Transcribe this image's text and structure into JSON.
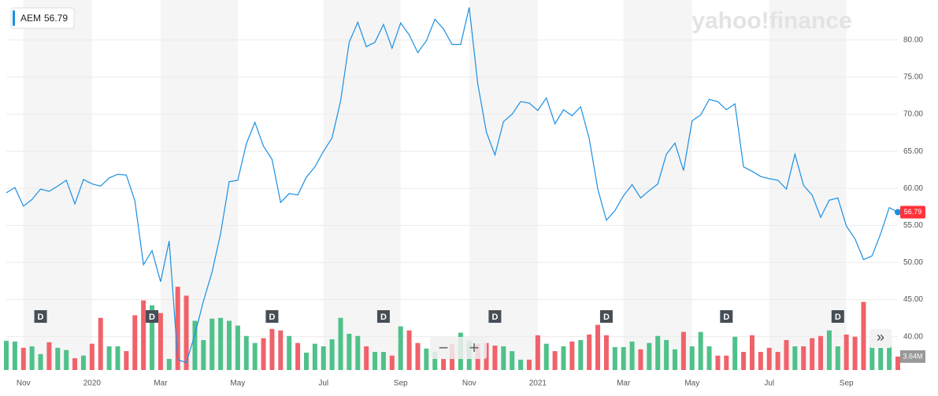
{
  "chart_data": {
    "type": "stock",
    "watermark": "yahoo!finance",
    "controls": {
      "zoom_out": "−",
      "zoom_in": "+",
      "expand": "»"
    },
    "categories": [
      null,
      null,
      "Nov",
      null,
      null,
      null,
      null,
      null,
      null,
      null,
      "2020",
      null,
      null,
      null,
      null,
      null,
      null,
      null,
      "Mar",
      null,
      null,
      null,
      null,
      null,
      null,
      null,
      null,
      "May",
      null,
      null,
      null,
      null,
      null,
      null,
      null,
      null,
      null,
      "Jul",
      null,
      null,
      null,
      null,
      null,
      null,
      null,
      null,
      "Sep",
      null,
      null,
      null,
      null,
      null,
      null,
      null,
      "Nov",
      null,
      null,
      null,
      null,
      null,
      null,
      null,
      "2021",
      null,
      null,
      null,
      null,
      null,
      null,
      null,
      null,
      null,
      "Mar",
      null,
      null,
      null,
      null,
      null,
      null,
      null,
      "May",
      null,
      null,
      null,
      null,
      null,
      null,
      null,
      null,
      "Jul",
      null,
      null,
      null,
      null,
      null,
      null,
      null,
      null,
      "Sep",
      null,
      null,
      null,
      null,
      null,
      null
    ],
    "series": [
      {
        "name": "AEM",
        "color": "#1a8fe3",
        "values": [
          59.4,
          60.1,
          57.6,
          58.5,
          59.9,
          59.6,
          60.3,
          61.1,
          57.9,
          61.2,
          60.6,
          60.3,
          61.4,
          61.9,
          61.8,
          58.3,
          49.7,
          51.6,
          47.4,
          52.9,
          36.9,
          36.5,
          40.3,
          44.8,
          48.7,
          53.9,
          60.9,
          61.1,
          66.0,
          68.9,
          65.7,
          63.9,
          58.1,
          59.3,
          59.1,
          61.5,
          62.9,
          65.0,
          66.8,
          71.8,
          79.7,
          82.4,
          79.1,
          79.7,
          82.1,
          78.9,
          82.3,
          80.7,
          78.3,
          79.9,
          82.8,
          81.5,
          79.4,
          79.4,
          84.4,
          74.1,
          67.6,
          64.5,
          69.0,
          70.0,
          71.7,
          71.5,
          70.5,
          72.2,
          68.7,
          70.6,
          69.8,
          71.0,
          66.7,
          59.9,
          55.7,
          57.0,
          59.0,
          60.5,
          58.7,
          59.7,
          60.6,
          64.6,
          66.1,
          62.4,
          69.1,
          69.9,
          72.0,
          71.7,
          70.6,
          71.4,
          62.9,
          62.3,
          61.6,
          61.3,
          61.1,
          59.9,
          64.6,
          60.4,
          59.1,
          56.1,
          58.4,
          58.7,
          54.9,
          53.2,
          50.4,
          50.9,
          53.9,
          57.4,
          56.79
        ]
      },
      {
        "name": "Volume",
        "axis": "y2",
        "up_color": "#4fc18a",
        "down_color": "#f0626a",
        "values": [
          7.9,
          7.7,
          6.0,
          6.4,
          4.3,
          7.5,
          6.0,
          5.4,
          3.2,
          3.9,
          7.1,
          14.1,
          6.4,
          6.4,
          5.1,
          14.8,
          18.8,
          17.5,
          15.4,
          3.0,
          22.5,
          20.1,
          13.3,
          8.1,
          13.9,
          14.1,
          13.3,
          12.0,
          9.2,
          7.3,
          8.6,
          11.1,
          10.7,
          9.2,
          7.3,
          4.7,
          7.1,
          6.4,
          8.3,
          14.1,
          9.8,
          9.2,
          6.4,
          4.9,
          4.9,
          3.9,
          11.8,
          10.7,
          7.3,
          5.8,
          4.9,
          3.0,
          7.1,
          10.1,
          7.9,
          7.1,
          7.3,
          6.6,
          6.4,
          5.1,
          2.8,
          2.8,
          9.4,
          7.1,
          5.1,
          6.4,
          7.7,
          8.1,
          9.6,
          12.2,
          9.4,
          6.2,
          6.2,
          7.7,
          5.6,
          7.3,
          9.2,
          8.1,
          5.6,
          10.3,
          6.4,
          10.3,
          6.4,
          3.9,
          3.9,
          9.0,
          4.9,
          9.4,
          4.9,
          6.0,
          4.9,
          8.1,
          6.4,
          6.4,
          8.6,
          9.2,
          10.7,
          6.4,
          9.6,
          9.0,
          18.4,
          8.6,
          6.4,
          8.1,
          3.64
        ],
        "value_labels": [
          null,
          null,
          null,
          null,
          null,
          null,
          null,
          null,
          null,
          null,
          null,
          null,
          null,
          null,
          null,
          null,
          null,
          null,
          null,
          null,
          null,
          null,
          null,
          null,
          null,
          null,
          null,
          null,
          null,
          null,
          null,
          null,
          null,
          null,
          null,
          null,
          null,
          null,
          null,
          null,
          null,
          null,
          null,
          null,
          null,
          null,
          null,
          null,
          null,
          null,
          null,
          null,
          null,
          null,
          null,
          null,
          null,
          null,
          null,
          null,
          null,
          null,
          null,
          null,
          null,
          null,
          null,
          null,
          null,
          null,
          null,
          null,
          null,
          null,
          null,
          null,
          null,
          null,
          null,
          null,
          null,
          null,
          null,
          null,
          null,
          null,
          null,
          null,
          null,
          null,
          null,
          null,
          null,
          null,
          null,
          null,
          null,
          null,
          null,
          null,
          null,
          null,
          null,
          null,
          "3.64M"
        ]
      }
    ],
    "dividends": {
      "label": "D",
      "indices": [
        4,
        17,
        31,
        44,
        57,
        70,
        84,
        97
      ]
    },
    "ylim": [
      35.5,
      85.4
    ],
    "yticks": [
      {
        "value": 40,
        "label": "40.00"
      },
      {
        "value": 45,
        "label": "45.00"
      },
      {
        "value": 50,
        "label": "50.00"
      },
      {
        "value": 55,
        "label": "55.00"
      },
      {
        "value": 60,
        "label": "60.00"
      },
      {
        "value": 65,
        "label": "65.00"
      },
      {
        "value": 70,
        "label": "70.00"
      },
      {
        "value": 75,
        "label": "75.00"
      },
      {
        "value": 80,
        "label": "80.00"
      }
    ],
    "y2lim": [
      0,
      100
    ],
    "grid": true
  }
}
